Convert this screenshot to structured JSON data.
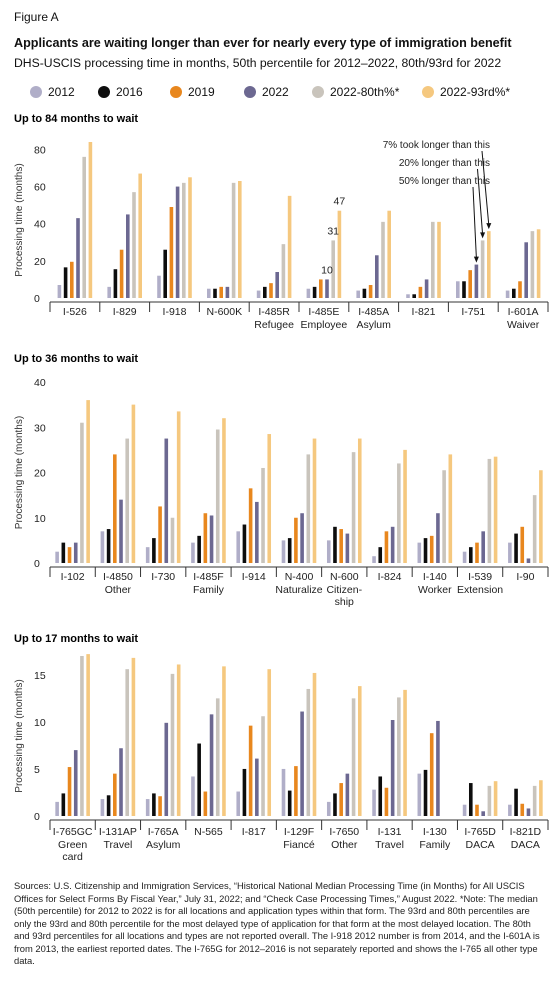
{
  "figure_label": "Figure A",
  "title": "Applicants are waiting longer than ever for nearly every type of immigration benefit",
  "subtitle": "DHS-USCIS processing time in months, 50th percentile for 2012–2022, 80th/93rd for 2022",
  "legend": [
    {
      "name": "2012",
      "color": "#b0aec8"
    },
    {
      "name": "2016",
      "color": "#0d0d0d"
    },
    {
      "name": "2019",
      "color": "#e8871e"
    },
    {
      "name": "2022",
      "color": "#6c6891"
    },
    {
      "name": "2022-80th%*",
      "color": "#c9c4bc"
    },
    {
      "name": "2022-93rd%*",
      "color": "#f5c87f"
    }
  ],
  "sources_text": "Sources: U.S. Citizenship and Immigration Services, “Historical National Median Processing Time (in Months) for All USCIS Offices for Select Forms By Fiscal Year,” July 31, 2022; and “Check Case Processing Times,” August 2022. *Note: The median (50th percentile) for 2012 to 2022 is for all locations and application types within that form. The 93rd and 80th percentiles are only the 93rd and 80th percentile for the most delayed type of application for that form at the most delayed location. The 80th and 93rd percentiles for all locations and types are not reported overall. The I-918 2012 number is from 2014, and the I-601A is from 2013, the earliest reported dates. The I-765G for 2012–2016 is not separately reported and shows the I-765 all other type data.",
  "chart_data": [
    {
      "type": "bar",
      "title": "Up to 84 months to wait",
      "ylabel": "Processing time (months)",
      "ylim": [
        0,
        84
      ],
      "yticks": [
        0,
        20,
        40,
        60,
        80
      ],
      "categories": [
        "I-526",
        "I-829",
        "I-918",
        "N-600K",
        "I-485R",
        "I-485E",
        "I-485A",
        "I-821",
        "I-751",
        "I-601A"
      ],
      "sublabels": [
        "",
        "",
        "",
        "",
        "Refugee",
        "Employee",
        "Asylum",
        "",
        "",
        "Waiver"
      ],
      "series": [
        {
          "name": "2012",
          "values": [
            7,
            6,
            12,
            5,
            4,
            5,
            4,
            2,
            9,
            4
          ]
        },
        {
          "name": "2016",
          "values": [
            16.5,
            15.5,
            26,
            5,
            6,
            6,
            5,
            2,
            9,
            5
          ]
        },
        {
          "name": "2019",
          "values": [
            19.5,
            26,
            49,
            6,
            8,
            10,
            7,
            6,
            15,
            9
          ]
        },
        {
          "name": "2022",
          "values": [
            43,
            45,
            60,
            6,
            14,
            10,
            23,
            10,
            18,
            30
          ]
        },
        {
          "name": "2022-80th%*",
          "values": [
            76,
            57,
            62,
            62,
            29,
            31,
            41,
            41,
            31,
            36
          ]
        },
        {
          "name": "2022-93rd%*",
          "values": [
            84,
            67,
            65,
            63,
            55,
            47,
            47,
            41,
            36,
            37
          ]
        }
      ],
      "data_labels": [
        {
          "category": "I-485E",
          "series": "2022",
          "text": "10"
        },
        {
          "category": "I-485E",
          "series": "2022-80th%*",
          "text": "31"
        },
        {
          "category": "I-485E",
          "series": "2022-93rd%*",
          "text": "47"
        }
      ],
      "annotations": [
        "7% took longer than this",
        "20% longer than this",
        "50% longer than this"
      ]
    },
    {
      "type": "bar",
      "title": "Up to 36 months to wait",
      "ylabel": "Processing time (months)",
      "ylim": [
        0,
        40
      ],
      "yticks": [
        0,
        10,
        20,
        30,
        40
      ],
      "categories": [
        "I-102",
        "I-4850",
        "I-730",
        "I-485F",
        "I-914",
        "N-400",
        "N-600",
        "I-824",
        "I-140",
        "I-539",
        "I-90"
      ],
      "sublabels": [
        "",
        "Other",
        "",
        "Family",
        "",
        "Naturalize",
        "Citizen-",
        "",
        "Worker",
        "Extension",
        ""
      ],
      "sublabels2": [
        "",
        "",
        "",
        "",
        "",
        "",
        "ship",
        "",
        "",
        "",
        ""
      ],
      "series": [
        {
          "name": "2012",
          "values": [
            2.5,
            7,
            3.5,
            4.5,
            7,
            5,
            5,
            1.5,
            4.5,
            2.5,
            4.5
          ]
        },
        {
          "name": "2016",
          "values": [
            4.5,
            7.5,
            5.5,
            6,
            8.5,
            5.5,
            8,
            3.5,
            5.5,
            3.5,
            6.5
          ]
        },
        {
          "name": "2019",
          "values": [
            3.5,
            24,
            12.5,
            11,
            16.5,
            10,
            7.5,
            7,
            6,
            4.5,
            8
          ]
        },
        {
          "name": "2022",
          "values": [
            4.5,
            14,
            27.5,
            10.5,
            13.5,
            11,
            6.5,
            8,
            11,
            7,
            1
          ]
        },
        {
          "name": "2022-80th%*",
          "values": [
            31,
            27.5,
            10,
            29.5,
            21,
            24,
            24.5,
            22,
            20.5,
            23,
            15
          ]
        },
        {
          "name": "2022-93rd%*",
          "values": [
            36,
            35,
            33.5,
            32,
            28.5,
            27.5,
            27.5,
            25,
            24,
            23.5,
            20.5
          ]
        }
      ]
    },
    {
      "type": "bar",
      "title": "Up to 17 months to wait",
      "ylabel": "Processing time (months)",
      "ylim": [
        0,
        17
      ],
      "yticks": [
        0,
        5,
        10,
        15
      ],
      "categories": [
        "I-765GC",
        "I-131AP",
        "I-765A",
        "N-565",
        "I-817",
        "I-129F",
        "I-7650",
        "I-131",
        "I-130",
        "I-765D",
        "I-821D"
      ],
      "sublabels": [
        "Green",
        "Travel",
        "Asylum",
        "",
        "",
        "Fiancé",
        "Other",
        "Travel",
        "Family",
        "DACA",
        "DACA"
      ],
      "sublabels2": [
        "card",
        "",
        "",
        "",
        "",
        "",
        "",
        "",
        "",
        "",
        ""
      ],
      "series": [
        {
          "name": "2012",
          "values": [
            1.5,
            1.8,
            1.8,
            4.2,
            2.6,
            5,
            1.5,
            2.8,
            4.5,
            1.2,
            1.2
          ]
        },
        {
          "name": "2016",
          "values": [
            2.4,
            2.2,
            2.4,
            7.7,
            5,
            2.7,
            2.4,
            4.2,
            4.9,
            3.5,
            2.9
          ]
        },
        {
          "name": "2019",
          "values": [
            5.2,
            4.5,
            2.1,
            2.6,
            9.6,
            5.3,
            3.5,
            3,
            8.8,
            1.2,
            1.3
          ]
        },
        {
          "name": "2022",
          "values": [
            7,
            7.2,
            9.9,
            10.8,
            6.1,
            11.1,
            4.5,
            10.2,
            10.1,
            0.5,
            0.8
          ]
        },
        {
          "name": "2022-80th%*",
          "values": [
            17,
            15.6,
            15.1,
            12.5,
            10.6,
            13.5,
            12.5,
            12.6,
            0,
            3.2,
            3.2
          ]
        },
        {
          "name": "2022-93rd%*",
          "values": [
            17.2,
            16.8,
            16.1,
            15.9,
            15.6,
            15.2,
            13.8,
            13.4,
            0,
            3.7,
            3.8
          ]
        }
      ]
    }
  ]
}
